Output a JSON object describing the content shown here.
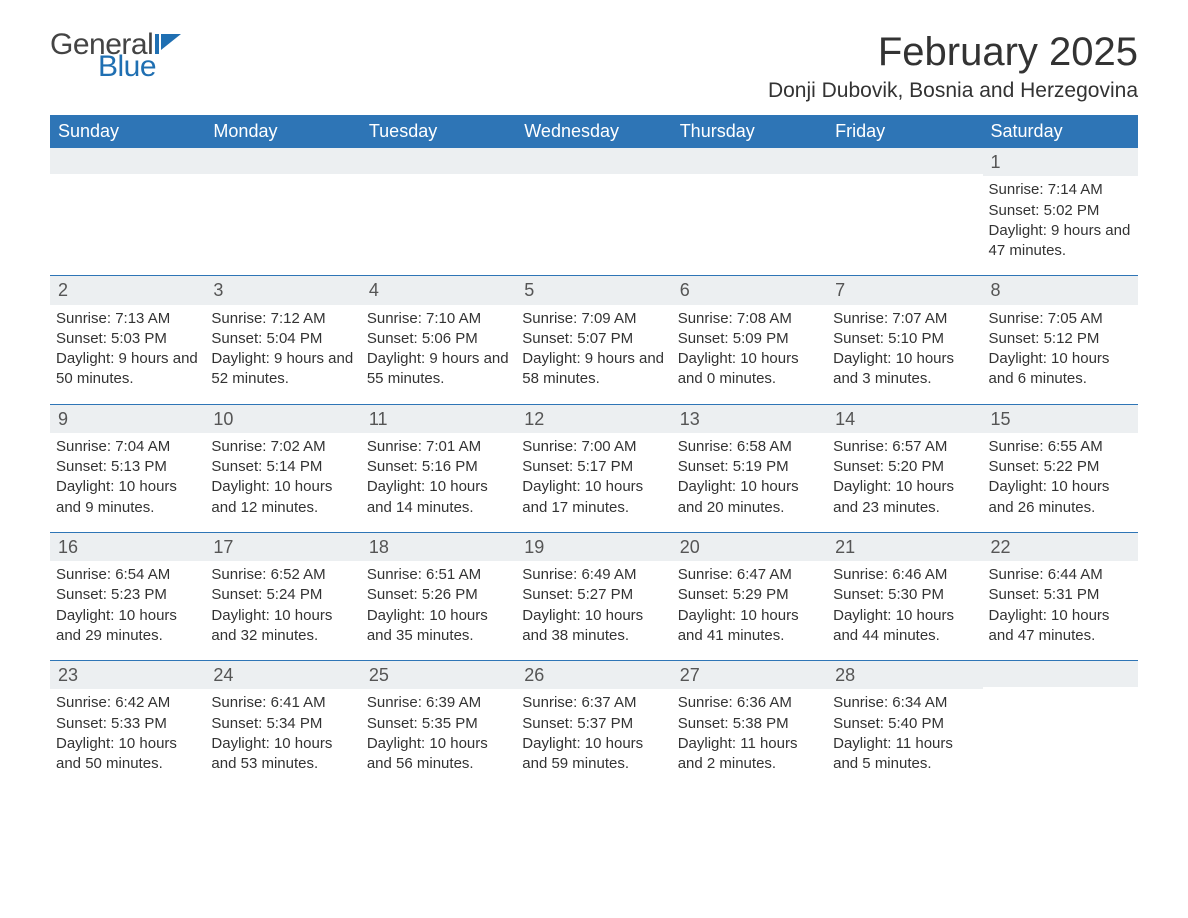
{
  "logo": {
    "text1": "General",
    "text2": "Blue",
    "icon_color": "#1f6fb2"
  },
  "title": "February 2025",
  "location": "Donji Dubovik, Bosnia and Herzegovina",
  "colors": {
    "header_bg": "#2e75b6",
    "header_fg": "#ffffff",
    "daynum_bg": "#eceff1",
    "week_border": "#2e75b6",
    "text": "#333333"
  },
  "weekdays": [
    "Sunday",
    "Monday",
    "Tuesday",
    "Wednesday",
    "Thursday",
    "Friday",
    "Saturday"
  ],
  "weeks": [
    [
      {
        "empty": true
      },
      {
        "empty": true
      },
      {
        "empty": true
      },
      {
        "empty": true
      },
      {
        "empty": true
      },
      {
        "empty": true
      },
      {
        "n": "1",
        "sr": "Sunrise: 7:14 AM",
        "ss": "Sunset: 5:02 PM",
        "dl": "Daylight: 9 hours and 47 minutes."
      }
    ],
    [
      {
        "n": "2",
        "sr": "Sunrise: 7:13 AM",
        "ss": "Sunset: 5:03 PM",
        "dl": "Daylight: 9 hours and 50 minutes."
      },
      {
        "n": "3",
        "sr": "Sunrise: 7:12 AM",
        "ss": "Sunset: 5:04 PM",
        "dl": "Daylight: 9 hours and 52 minutes."
      },
      {
        "n": "4",
        "sr": "Sunrise: 7:10 AM",
        "ss": "Sunset: 5:06 PM",
        "dl": "Daylight: 9 hours and 55 minutes."
      },
      {
        "n": "5",
        "sr": "Sunrise: 7:09 AM",
        "ss": "Sunset: 5:07 PM",
        "dl": "Daylight: 9 hours and 58 minutes."
      },
      {
        "n": "6",
        "sr": "Sunrise: 7:08 AM",
        "ss": "Sunset: 5:09 PM",
        "dl": "Daylight: 10 hours and 0 minutes."
      },
      {
        "n": "7",
        "sr": "Sunrise: 7:07 AM",
        "ss": "Sunset: 5:10 PM",
        "dl": "Daylight: 10 hours and 3 minutes."
      },
      {
        "n": "8",
        "sr": "Sunrise: 7:05 AM",
        "ss": "Sunset: 5:12 PM",
        "dl": "Daylight: 10 hours and 6 minutes."
      }
    ],
    [
      {
        "n": "9",
        "sr": "Sunrise: 7:04 AM",
        "ss": "Sunset: 5:13 PM",
        "dl": "Daylight: 10 hours and 9 minutes."
      },
      {
        "n": "10",
        "sr": "Sunrise: 7:02 AM",
        "ss": "Sunset: 5:14 PM",
        "dl": "Daylight: 10 hours and 12 minutes."
      },
      {
        "n": "11",
        "sr": "Sunrise: 7:01 AM",
        "ss": "Sunset: 5:16 PM",
        "dl": "Daylight: 10 hours and 14 minutes."
      },
      {
        "n": "12",
        "sr": "Sunrise: 7:00 AM",
        "ss": "Sunset: 5:17 PM",
        "dl": "Daylight: 10 hours and 17 minutes."
      },
      {
        "n": "13",
        "sr": "Sunrise: 6:58 AM",
        "ss": "Sunset: 5:19 PM",
        "dl": "Daylight: 10 hours and 20 minutes."
      },
      {
        "n": "14",
        "sr": "Sunrise: 6:57 AM",
        "ss": "Sunset: 5:20 PM",
        "dl": "Daylight: 10 hours and 23 minutes."
      },
      {
        "n": "15",
        "sr": "Sunrise: 6:55 AM",
        "ss": "Sunset: 5:22 PM",
        "dl": "Daylight: 10 hours and 26 minutes."
      }
    ],
    [
      {
        "n": "16",
        "sr": "Sunrise: 6:54 AM",
        "ss": "Sunset: 5:23 PM",
        "dl": "Daylight: 10 hours and 29 minutes."
      },
      {
        "n": "17",
        "sr": "Sunrise: 6:52 AM",
        "ss": "Sunset: 5:24 PM",
        "dl": "Daylight: 10 hours and 32 minutes."
      },
      {
        "n": "18",
        "sr": "Sunrise: 6:51 AM",
        "ss": "Sunset: 5:26 PM",
        "dl": "Daylight: 10 hours and 35 minutes."
      },
      {
        "n": "19",
        "sr": "Sunrise: 6:49 AM",
        "ss": "Sunset: 5:27 PM",
        "dl": "Daylight: 10 hours and 38 minutes."
      },
      {
        "n": "20",
        "sr": "Sunrise: 6:47 AM",
        "ss": "Sunset: 5:29 PM",
        "dl": "Daylight: 10 hours and 41 minutes."
      },
      {
        "n": "21",
        "sr": "Sunrise: 6:46 AM",
        "ss": "Sunset: 5:30 PM",
        "dl": "Daylight: 10 hours and 44 minutes."
      },
      {
        "n": "22",
        "sr": "Sunrise: 6:44 AM",
        "ss": "Sunset: 5:31 PM",
        "dl": "Daylight: 10 hours and 47 minutes."
      }
    ],
    [
      {
        "n": "23",
        "sr": "Sunrise: 6:42 AM",
        "ss": "Sunset: 5:33 PM",
        "dl": "Daylight: 10 hours and 50 minutes."
      },
      {
        "n": "24",
        "sr": "Sunrise: 6:41 AM",
        "ss": "Sunset: 5:34 PM",
        "dl": "Daylight: 10 hours and 53 minutes."
      },
      {
        "n": "25",
        "sr": "Sunrise: 6:39 AM",
        "ss": "Sunset: 5:35 PM",
        "dl": "Daylight: 10 hours and 56 minutes."
      },
      {
        "n": "26",
        "sr": "Sunrise: 6:37 AM",
        "ss": "Sunset: 5:37 PM",
        "dl": "Daylight: 10 hours and 59 minutes."
      },
      {
        "n": "27",
        "sr": "Sunrise: 6:36 AM",
        "ss": "Sunset: 5:38 PM",
        "dl": "Daylight: 11 hours and 2 minutes."
      },
      {
        "n": "28",
        "sr": "Sunrise: 6:34 AM",
        "ss": "Sunset: 5:40 PM",
        "dl": "Daylight: 11 hours and 5 minutes."
      },
      {
        "empty": true
      }
    ]
  ]
}
